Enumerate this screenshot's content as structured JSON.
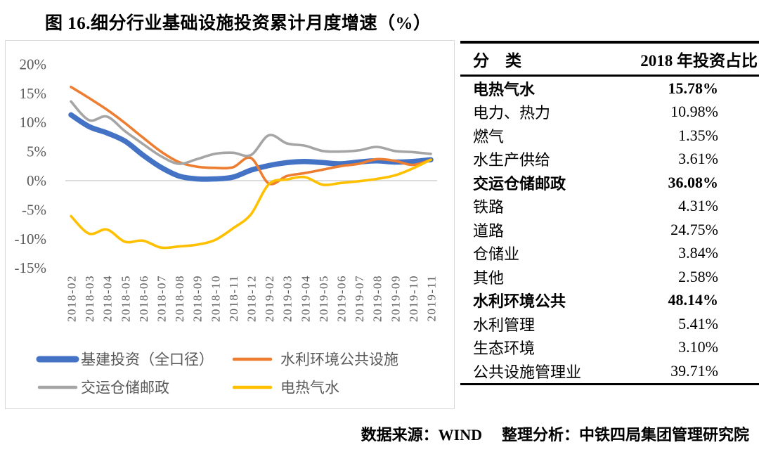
{
  "figure": {
    "title": "图 16.细分行业基础设施投资累计月度增速（%）"
  },
  "chart_data": {
    "type": "line",
    "title": "图 16.细分行业基础设施投资累计月度增速（%）",
    "x": [
      "2018-02",
      "2018-03",
      "2018-04",
      "2018-05",
      "2018-06",
      "2018-07",
      "2018-08",
      "2018-09",
      "2018-10",
      "2018-11",
      "2018-12",
      "2019-02",
      "2019-03",
      "2019-04",
      "2019-05",
      "2019-06",
      "2019-07",
      "2019-08",
      "2019-09",
      "2019-10",
      "2019-11"
    ],
    "series": [
      {
        "name": "基建投资（全口径）",
        "color": "#4472C4",
        "line_width": 7.5,
        "values": [
          11.3,
          9.3,
          8.2,
          6.8,
          4.4,
          2.3,
          0.8,
          0.3,
          0.3,
          0.6,
          1.8,
          2.6,
          3.1,
          3.3,
          3.1,
          2.9,
          3.2,
          3.4,
          3.2,
          3.3,
          3.6
        ]
      },
      {
        "name": "水利环境公共设施",
        "color": "#ED7D31",
        "line_width": 3.6,
        "values": [
          16.1,
          14.2,
          12.2,
          9.9,
          7.4,
          5.0,
          3.2,
          2.4,
          2.2,
          2.3,
          3.9,
          -0.5,
          0.8,
          1.3,
          1.9,
          2.5,
          2.9,
          3.7,
          3.4,
          2.7,
          3.6
        ]
      },
      {
        "name": "交运仓储邮政",
        "color": "#A5A5A5",
        "line_width": 3.6,
        "values": [
          13.6,
          10.4,
          11.0,
          8.5,
          6.3,
          4.2,
          2.9,
          3.7,
          4.6,
          4.8,
          4.4,
          7.8,
          6.4,
          6.0,
          5.1,
          5.0,
          5.2,
          5.8,
          5.1,
          4.9,
          4.6
        ]
      },
      {
        "name": "电热气水",
        "color": "#FFC000",
        "line_width": 3.6,
        "values": [
          -6.1,
          -9.1,
          -8.4,
          -10.5,
          -10.3,
          -11.5,
          -11.3,
          -11.0,
          -10.2,
          -8.2,
          -5.8,
          -0.6,
          0.2,
          0.6,
          -0.7,
          -0.4,
          -0.1,
          0.3,
          0.9,
          2.1,
          3.6
        ]
      }
    ],
    "ylim": [
      -15,
      20
    ],
    "yticks_percent": [
      20,
      15,
      10,
      5,
      0,
      -5,
      -10,
      -15
    ],
    "ytick_labels": [
      "20%",
      "15%",
      "10%",
      "5%",
      "0%",
      "-5%",
      "-10%",
      "-15%"
    ],
    "xlabel": "",
    "ylabel": "",
    "grid": "zero-line-only",
    "legend_position": "bottom-left",
    "axis_text_color": "#595959",
    "zero_line_color": "#c8c8c8"
  },
  "table": {
    "headers": [
      "分　类",
      "2018 年投资占比"
    ],
    "rows": [
      {
        "label": "电热气水",
        "value": "15.78%",
        "bold": true
      },
      {
        "label": "电力、热力",
        "value": "10.98%",
        "bold": false
      },
      {
        "label": "燃气",
        "value": "1.35%",
        "bold": false
      },
      {
        "label": "水生产供给",
        "value": "3.61%",
        "bold": false
      },
      {
        "label": "交运仓储邮政",
        "value": "36.08%",
        "bold": true
      },
      {
        "label": "铁路",
        "value": "4.31%",
        "bold": false
      },
      {
        "label": "道路",
        "value": "24.75%",
        "bold": false
      },
      {
        "label": "仓储业",
        "value": "3.84%",
        "bold": false
      },
      {
        "label": "其他",
        "value": "2.58%",
        "bold": false
      },
      {
        "label": "水利环境公共",
        "value": "48.14%",
        "bold": true
      },
      {
        "label": "水利管理",
        "value": "5.41%",
        "bold": false
      },
      {
        "label": "生态环境",
        "value": "3.10%",
        "bold": false
      },
      {
        "label": "公共设施管理业",
        "value": "39.71%",
        "bold": false
      }
    ]
  },
  "footer": {
    "source": "数据来源：WIND",
    "analysis": "整理分析：中铁四局集团管理研究院"
  }
}
